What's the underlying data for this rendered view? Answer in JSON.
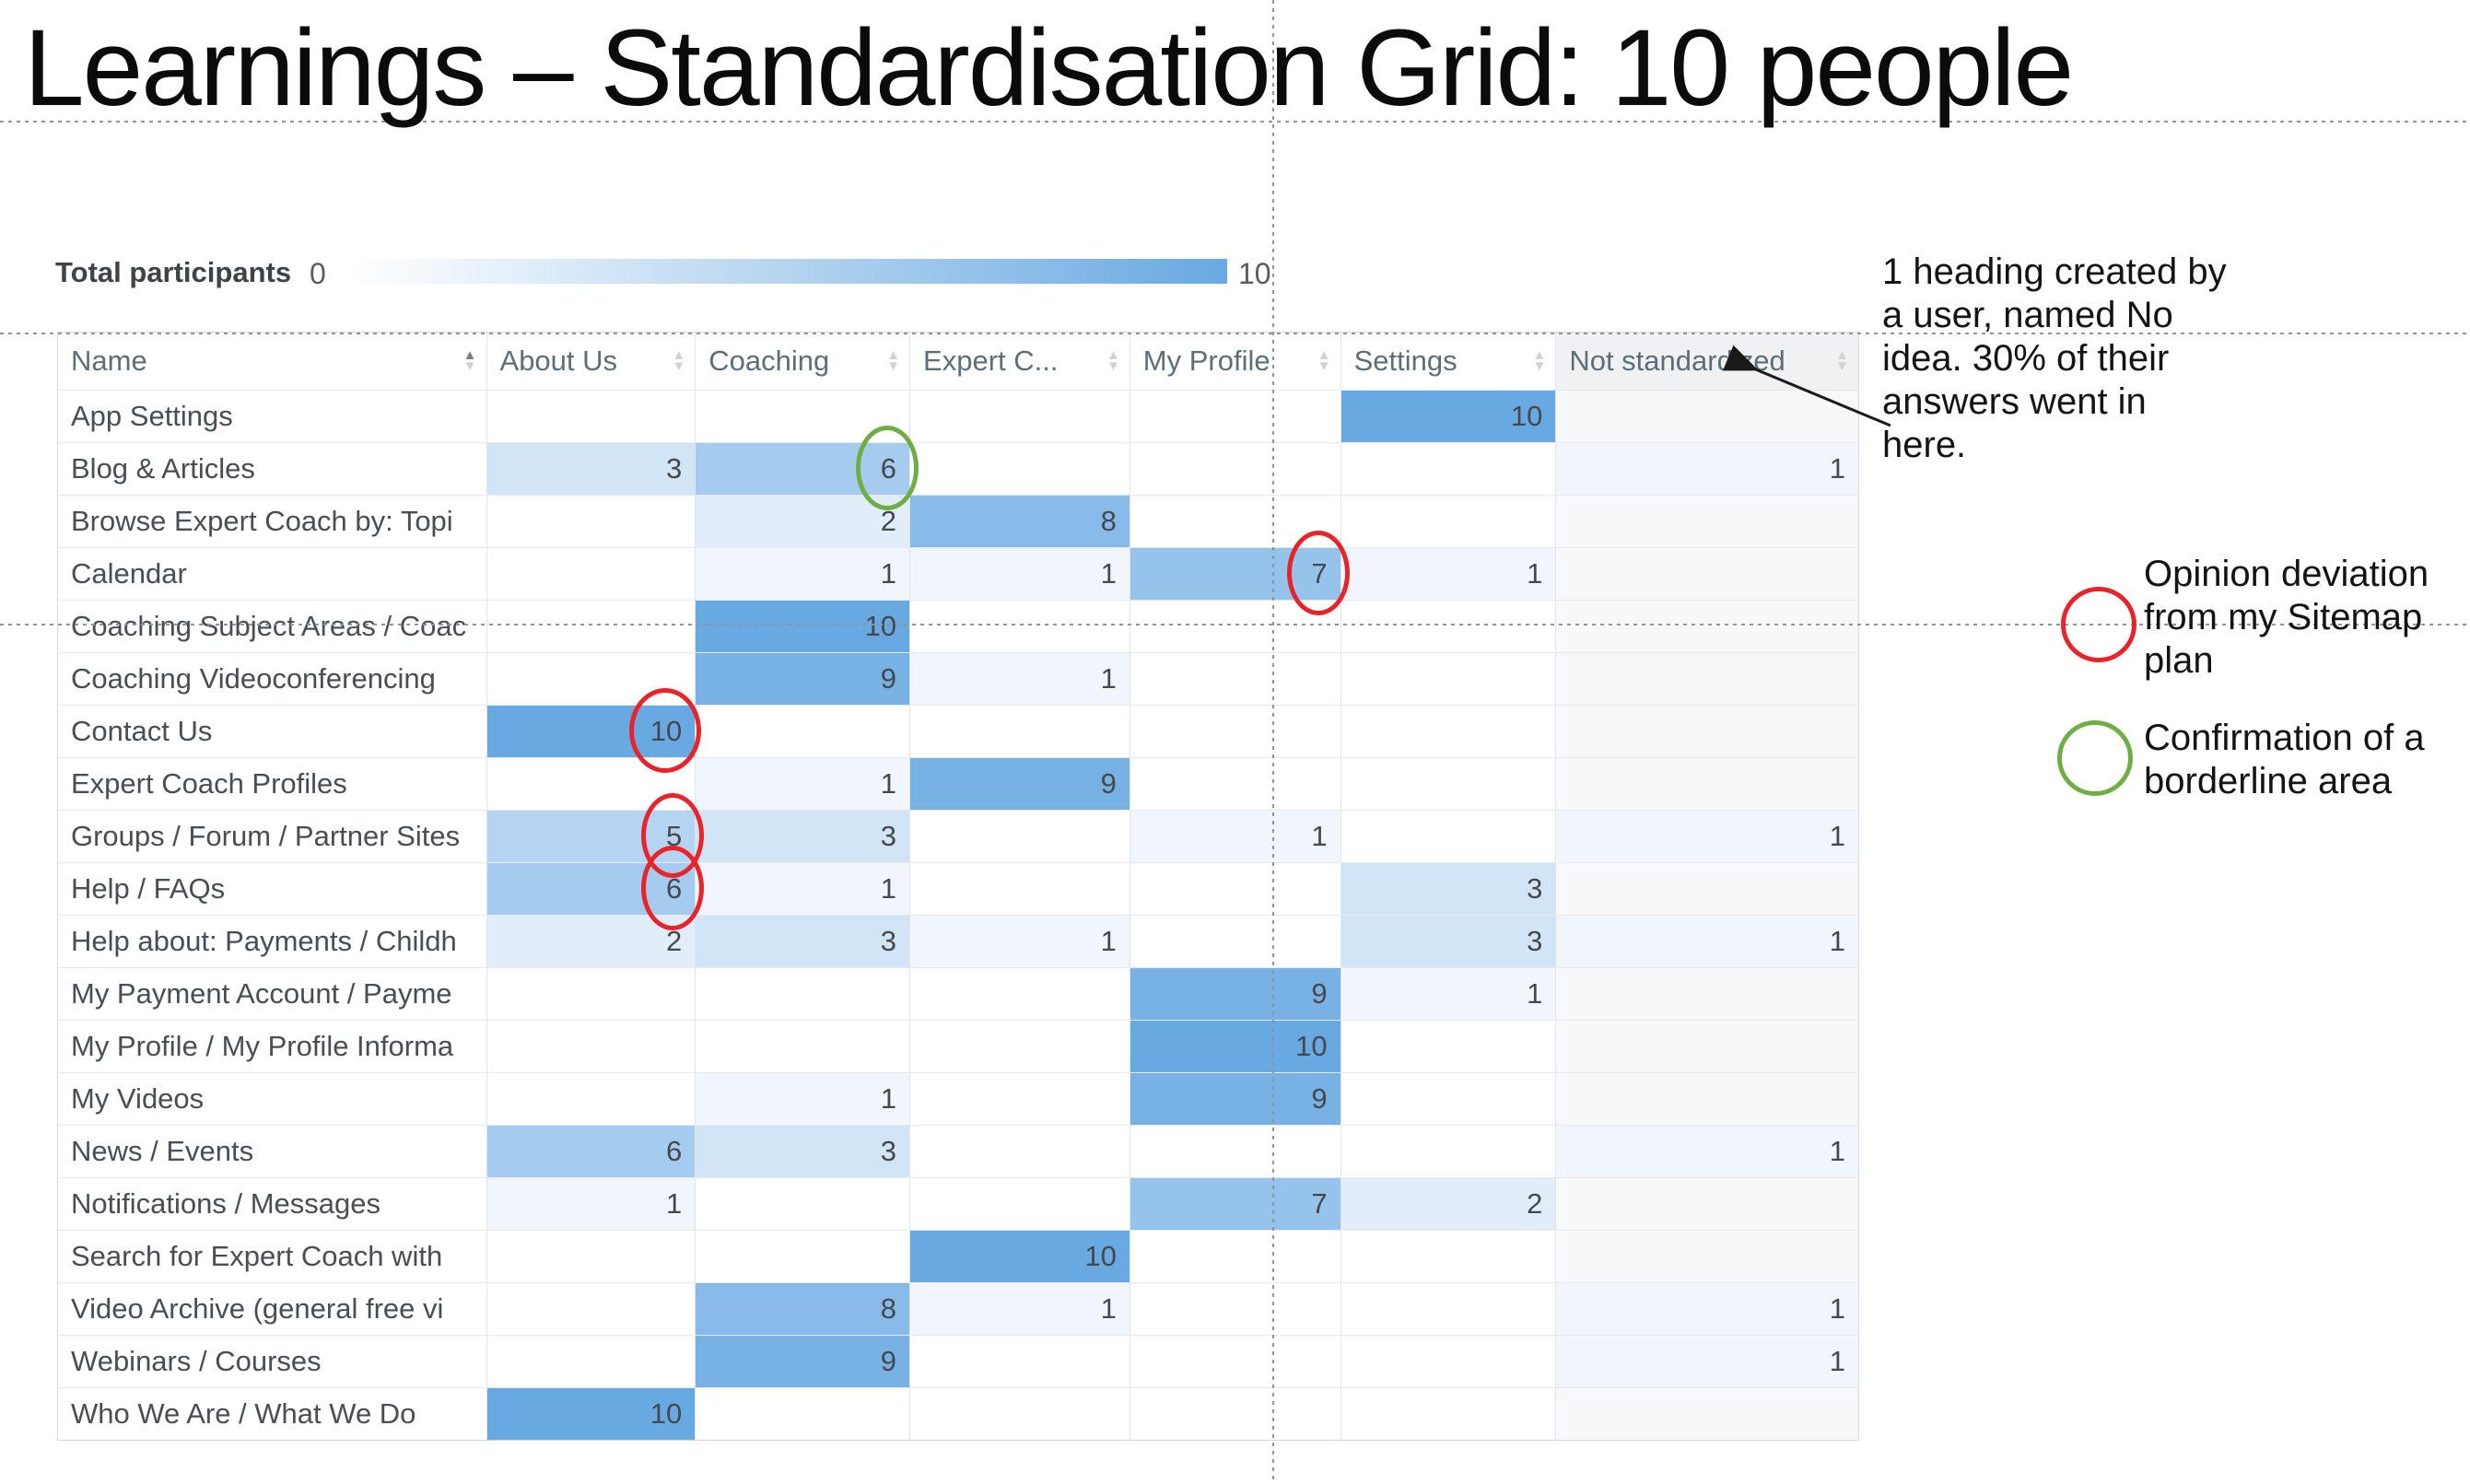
{
  "title": "Learnings – Standardisation Grid: 10 people",
  "scale": {
    "label": "Total participants",
    "min": "0",
    "max": "10"
  },
  "accent": "#69a9e2",
  "annotation": {
    "text": "1 heading created by\na user, named No\nidea. 30% of their\nanswers went in\nhere."
  },
  "legend": [
    {
      "shape": "red-circle",
      "color": "#e8232a",
      "text": "Opinion deviation\nfrom my Sitemap\nplan"
    },
    {
      "shape": "green-circle",
      "color": "#6fae44",
      "text": "Confirmation of a\nborderline area"
    }
  ],
  "chart_data": {
    "type": "heatmap",
    "title": "Learnings – Standardisation Grid: 10 people",
    "name_header": "Name",
    "columns": [
      "About Us",
      "Coaching",
      "Expert C...",
      "My Profile",
      "Settings",
      "Not standardized"
    ],
    "scale_range": [
      0,
      10
    ],
    "sorted_column": "Name",
    "sorted_direction": "asc",
    "rows": [
      {
        "name": "App Settings",
        "values": [
          null,
          null,
          null,
          null,
          10,
          null
        ]
      },
      {
        "name": "Blog & Articles",
        "values": [
          3,
          6,
          null,
          null,
          null,
          1
        ]
      },
      {
        "name": "Browse Expert Coach by: Topi",
        "values": [
          null,
          2,
          8,
          null,
          null,
          null
        ]
      },
      {
        "name": "Calendar",
        "values": [
          null,
          1,
          1,
          7,
          1,
          null
        ]
      },
      {
        "name": "Coaching Subject Areas / Coac",
        "values": [
          null,
          10,
          null,
          null,
          null,
          null
        ]
      },
      {
        "name": "Coaching Videoconferencing",
        "values": [
          null,
          9,
          1,
          null,
          null,
          null
        ]
      },
      {
        "name": "Contact Us",
        "values": [
          10,
          null,
          null,
          null,
          null,
          null
        ]
      },
      {
        "name": "Expert Coach Profiles",
        "values": [
          null,
          1,
          9,
          null,
          null,
          null
        ]
      },
      {
        "name": "Groups / Forum / Partner Sites",
        "values": [
          5,
          3,
          null,
          1,
          null,
          1
        ]
      },
      {
        "name": "Help / FAQs",
        "values": [
          6,
          1,
          null,
          null,
          3,
          null
        ]
      },
      {
        "name": "Help about: Payments / Childh",
        "values": [
          2,
          3,
          1,
          null,
          3,
          1
        ]
      },
      {
        "name": "My Payment Account / Payme",
        "values": [
          null,
          null,
          null,
          9,
          1,
          null
        ]
      },
      {
        "name": "My Profile / My Profile Informa",
        "values": [
          null,
          null,
          null,
          10,
          null,
          null
        ]
      },
      {
        "name": "My Videos",
        "values": [
          null,
          1,
          null,
          9,
          null,
          null
        ]
      },
      {
        "name": "News / Events",
        "values": [
          6,
          3,
          null,
          null,
          null,
          1
        ]
      },
      {
        "name": "Notifications / Messages",
        "values": [
          1,
          null,
          null,
          7,
          2,
          null
        ]
      },
      {
        "name": "Search for Expert Coach with",
        "values": [
          null,
          null,
          10,
          null,
          null,
          null
        ]
      },
      {
        "name": "Video Archive (general free vi",
        "values": [
          null,
          8,
          1,
          null,
          null,
          1
        ]
      },
      {
        "name": "Webinars / Courses",
        "values": [
          null,
          9,
          null,
          null,
          null,
          1
        ]
      },
      {
        "name": "Who We Are / What We Do",
        "values": [
          10,
          null,
          null,
          null,
          null,
          null
        ]
      }
    ],
    "highlights": [
      {
        "row": 1,
        "col": 1,
        "value": 6,
        "type": "green"
      },
      {
        "row": 3,
        "col": 3,
        "value": 7,
        "type": "red"
      },
      {
        "row": 6,
        "col": 0,
        "value": 10,
        "type": "red"
      },
      {
        "row": 8,
        "col": 0,
        "value": 5,
        "type": "red"
      },
      {
        "row": 9,
        "col": 0,
        "value": 6,
        "type": "red"
      }
    ],
    "highlight_colors": {
      "red": "#e8232a",
      "green": "#6fae44"
    }
  }
}
